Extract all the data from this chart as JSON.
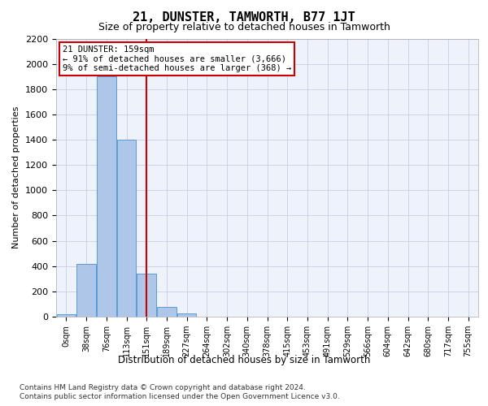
{
  "title": "21, DUNSTER, TAMWORTH, B77 1JT",
  "subtitle": "Size of property relative to detached houses in Tamworth",
  "xlabel": "Distribution of detached houses by size in Tamworth",
  "ylabel": "Number of detached properties",
  "bin_labels": [
    "0sqm",
    "38sqm",
    "76sqm",
    "113sqm",
    "151sqm",
    "189sqm",
    "227sqm",
    "264sqm",
    "302sqm",
    "340sqm",
    "378sqm",
    "415sqm",
    "453sqm",
    "491sqm",
    "529sqm",
    "566sqm",
    "604sqm",
    "642sqm",
    "680sqm",
    "717sqm",
    "755sqm"
  ],
  "bar_heights": [
    20,
    420,
    1900,
    1400,
    340,
    80,
    25,
    0,
    0,
    0,
    0,
    0,
    0,
    0,
    0,
    0,
    0,
    0,
    0,
    0,
    0
  ],
  "bar_color": "#aec6e8",
  "bar_edge_color": "#5b9bd5",
  "property_line_x": 4.0,
  "annotation_text_line1": "21 DUNSTER: 159sqm",
  "annotation_text_line2": "← 91% of detached houses are smaller (3,666)",
  "annotation_text_line3": "9% of semi-detached houses are larger (368) →",
  "vline_color": "#cc0000",
  "annotation_box_edge": "#cc0000",
  "ylim": [
    0,
    2200
  ],
  "yticks": [
    0,
    200,
    400,
    600,
    800,
    1000,
    1200,
    1400,
    1600,
    1800,
    2000,
    2200
  ],
  "footer_line1": "Contains HM Land Registry data © Crown copyright and database right 2024.",
  "footer_line2": "Contains public sector information licensed under the Open Government Licence v3.0.",
  "background_color": "#eef2fb",
  "grid_color": "#c0c8e0"
}
